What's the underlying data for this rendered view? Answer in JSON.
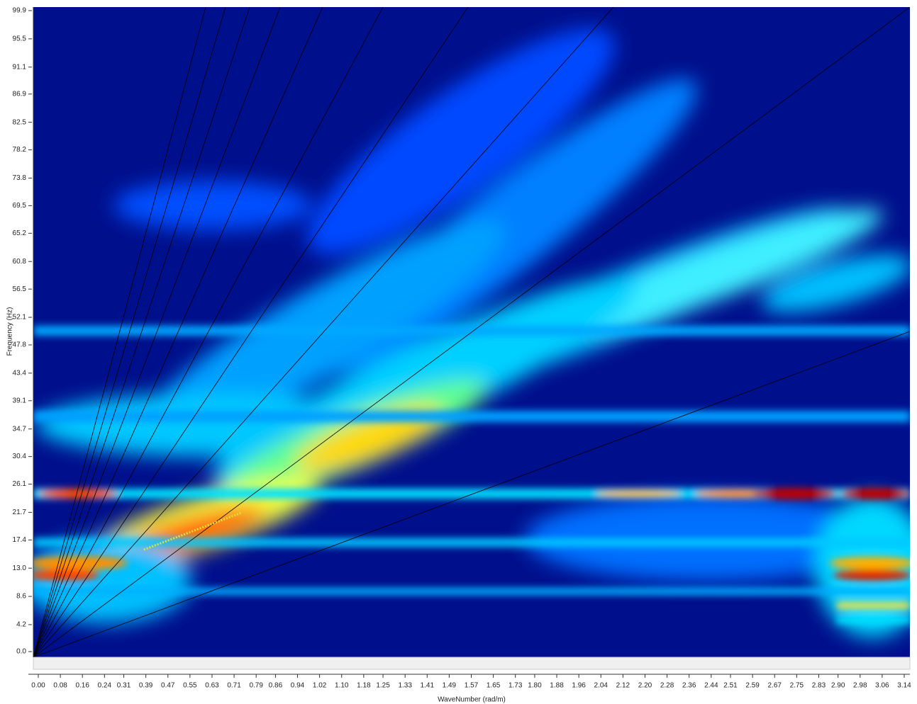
{
  "chart_data": {
    "type": "heatmap",
    "x_label": "WaveNumber (rad/m)",
    "y_label": "Frequency (Hz)",
    "xlim": [
      0,
      3.14
    ],
    "ylim": [
      0,
      99.9
    ],
    "xticks": [
      {
        "value": 0,
        "label": "0.00"
      },
      0.08,
      0.16,
      0.24,
      0.31,
      0.39,
      0.47,
      0.55,
      0.63,
      0.71,
      0.79,
      0.86,
      0.94,
      1.02,
      {
        "value": 1.1,
        "label": "1.10"
      },
      1.18,
      1.25,
      1.33,
      1.41,
      1.49,
      1.57,
      1.65,
      1.73,
      {
        "value": 1.8,
        "label": "1.80"
      },
      1.88,
      1.96,
      2.04,
      2.12,
      {
        "value": 2.2,
        "label": "2.20"
      },
      2.28,
      2.36,
      2.44,
      2.51,
      2.59,
      2.67,
      2.75,
      2.83,
      {
        "value": 2.9,
        "label": "2.90"
      },
      2.98,
      3.06,
      3.14
    ],
    "yticks": [
      99.9,
      95.5,
      91.1,
      86.9,
      82.5,
      78.2,
      73.8,
      69.5,
      65.2,
      60.8,
      56.5,
      52.1,
      47.8,
      43.4,
      39.1,
      34.7,
      30.4,
      26.1,
      21.7,
      17.4,
      {
        "value": 13,
        "label": "13.0"
      },
      8.6,
      4.2,
      {
        "value": 0,
        "label": "0.0"
      }
    ]
  }
}
